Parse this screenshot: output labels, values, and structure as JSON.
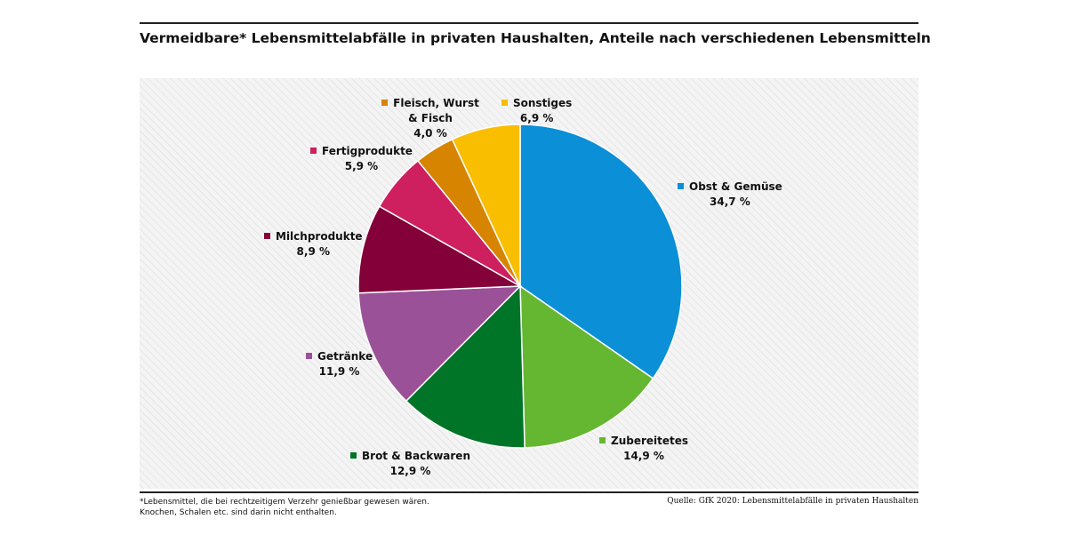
{
  "title": "Vermeidbare* Lebensmittelabfälle in privaten Haushalten, Anteile nach verschiedenen Lebensmitteln",
  "footnote": {
    "line1": "*Lebensmittel, die bei rechtzeitigem Verzehr genießbar gewesen wären.",
    "line2": "Knochen, Schalen etc. sind darin nicht enthalten."
  },
  "source": "Quelle: GfK 2020: Lebensmittelabfälle in privaten Haushalten",
  "chart_data": {
    "type": "pie",
    "unit": "%",
    "start": "12 o'clock, clockwise",
    "slices": [
      {
        "label": "Obst & Gemüse",
        "value": 34.7,
        "value_label": "34,7 %",
        "color": "#0b8fd6"
      },
      {
        "label": "Zubereitetes",
        "value": 14.9,
        "value_label": "14,9 %",
        "color": "#65b732"
      },
      {
        "label": "Brot & Backwaren",
        "value": 12.9,
        "value_label": "12,9 %",
        "color": "#007427"
      },
      {
        "label": "Getränke",
        "value": 11.9,
        "value_label": "11,9 %",
        "color": "#9b5198"
      },
      {
        "label": "Milchprodukte",
        "value": 8.9,
        "value_label": "8,9 %",
        "color": "#830038"
      },
      {
        "label": "Fertigprodukte",
        "value": 5.9,
        "value_label": "5,9 %",
        "color": "#ce1f5e"
      },
      {
        "label": "Fleisch, Wurst & Fisch",
        "value": 4.0,
        "value_label": "4,0 %",
        "color": "#d78400"
      },
      {
        "label": "Sonstiges",
        "value": 6.9,
        "value_label": "6,9 %",
        "color": "#f9be00"
      }
    ]
  }
}
